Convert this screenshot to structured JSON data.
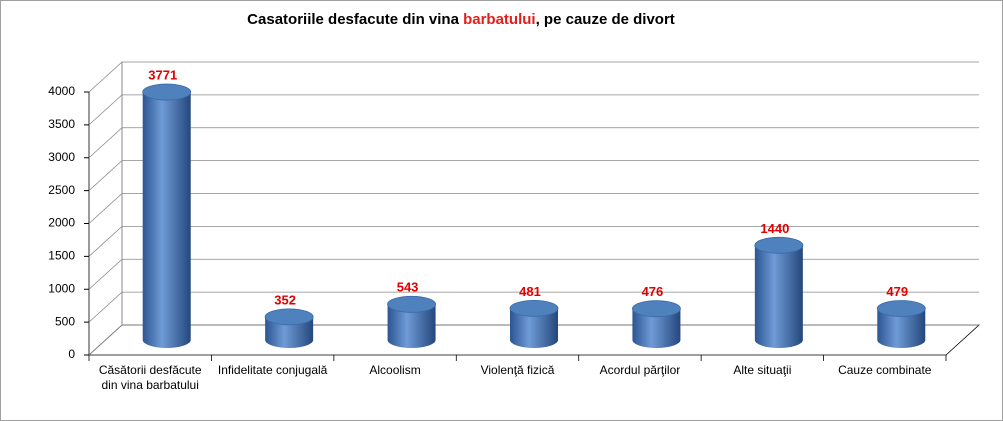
{
  "chart_data": {
    "type": "bar",
    "title": [
      "Casatoriile desfacute din vina ",
      "barbatului",
      ", pe cauze de divort"
    ],
    "categories": [
      "Căsătorii desfăcute din vina barbatului",
      "Infidelitate conjugală",
      "Alcoolism",
      "Violenţă fizică",
      "Acordul părţilor",
      "Alte situaţii",
      "Cauze combinate"
    ],
    "values": [
      3771,
      352,
      543,
      481,
      476,
      1440,
      479
    ],
    "color": "#4f81bd",
    "ylim": [
      0,
      4000
    ],
    "yticks": [
      0,
      500,
      1000,
      1500,
      2000,
      2500,
      3000,
      3500,
      4000
    ],
    "grid": true
  }
}
